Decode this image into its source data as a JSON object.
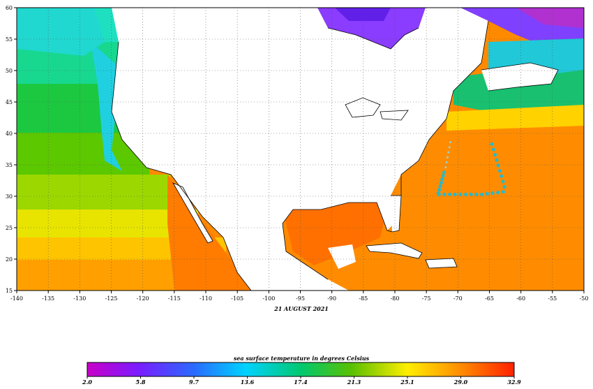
{
  "map": {
    "date_label": "21 AUGUST 2021",
    "lon_ticks": [
      "-140",
      "-135",
      "-130",
      "-125",
      "-120",
      "-115",
      "-110",
      "-105",
      "-100",
      "-95",
      "-90",
      "-85",
      "-80",
      "-75",
      "-70",
      "-65",
      "-60",
      "-55",
      "-50"
    ],
    "lat_ticks": [
      "60",
      "55",
      "50",
      "45",
      "40",
      "35",
      "30",
      "25",
      "20",
      "15"
    ],
    "lon_range": [
      -140,
      -50
    ],
    "lat_range": [
      15,
      60
    ],
    "grid": "dotted",
    "track_colors": {
      "track": "#2bb8c8",
      "track_light": "#8fd8e0"
    }
  },
  "colorbar": {
    "title": "sea surface temperature in degrees Celsius",
    "tick_labels": [
      "2.0",
      "5.8",
      "9.7",
      "13.6",
      "17.4",
      "21.3",
      "25.1",
      "29.0",
      "32.9"
    ],
    "range": [
      2.0,
      32.9
    ],
    "palette": [
      "#c000c0",
      "#7a1cff",
      "#2a5aff",
      "#00c8ff",
      "#00d080",
      "#40c000",
      "#c0e000",
      "#ffd000",
      "#ff8c00",
      "#ff3000"
    ]
  }
}
